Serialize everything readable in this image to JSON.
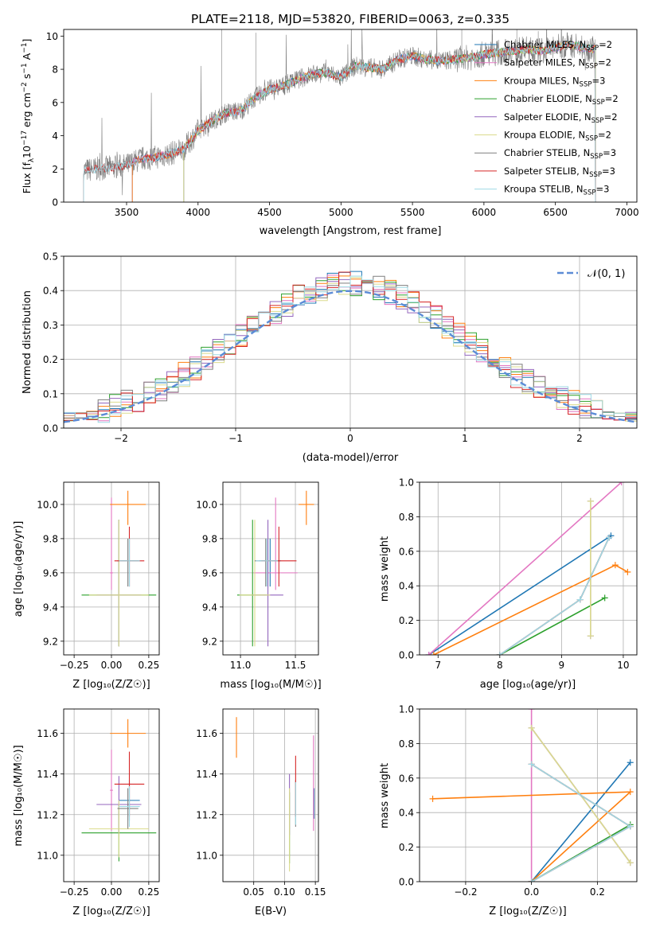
{
  "colors": {
    "Chabrier MILES": "#1f77b4",
    "Salpeter MILES": "#e377c2",
    "Kroupa MILES": "#ff7f0e",
    "Chabrier ELODIE": "#2ca02c",
    "Salpeter ELODIE": "#9467bd",
    "Kroupa ELODIE": "#dbdb8d",
    "Chabrier STELIB": "#7f7f7f",
    "Salpeter STELIB": "#d62728",
    "Kroupa STELIB": "#9edae5",
    "gauss": "#5b8bd6"
  },
  "chart_data": [
    {
      "id": "spectrum",
      "type": "line",
      "title": "PLATE=2118, MJD=53820, FIBERID=0063, z=0.335",
      "xlabel": "wavelength [Angstrom, rest frame]",
      "ylabel": "Flux [f_λ 10⁻¹⁷ erg cm⁻² s⁻¹ A⁻¹]",
      "xlim": [
        3060,
        7070
      ],
      "ylim": [
        0,
        10.4
      ],
      "xticks": [
        "3500",
        "4000",
        "4500",
        "5000",
        "5500",
        "6000",
        "6500",
        "7000"
      ],
      "yticks": [
        "0",
        "2",
        "4",
        "6",
        "8",
        "10"
      ],
      "legend_position": "top-right",
      "legend": [
        {
          "name": "Chabrier MILES",
          "label": "Chabrier MILES, N",
          "sub": "SSP",
          "tail": "=2"
        },
        {
          "name": "Salpeter MILES",
          "label": "Salpeter MILES, N",
          "sub": "SSP",
          "tail": "=2"
        },
        {
          "name": "Kroupa MILES",
          "label": "Kroupa MILES, N",
          "sub": "SSP",
          "tail": "=3"
        },
        {
          "name": "Chabrier ELODIE",
          "label": "Chabrier ELODIE, N",
          "sub": "SSP",
          "tail": "=2"
        },
        {
          "name": "Salpeter ELODIE",
          "label": "Salpeter ELODIE, N",
          "sub": "SSP",
          "tail": "=2"
        },
        {
          "name": "Kroupa ELODIE",
          "label": "Kroupa ELODIE, N",
          "sub": "SSP",
          "tail": "=2"
        },
        {
          "name": "Chabrier STELIB",
          "label": "Chabrier STELIB, N",
          "sub": "SSP",
          "tail": "=3"
        },
        {
          "name": "Salpeter STELIB",
          "label": "Salpeter STELIB, N",
          "sub": "SSP",
          "tail": "=3"
        },
        {
          "name": "Kroupa STELIB",
          "label": "Kroupa STELIB, N",
          "sub": "SSP",
          "tail": "=3"
        }
      ],
      "model_start_wavelength": {
        "Chabrier MILES": 3540,
        "Salpeter MILES": 3540,
        "Kroupa MILES": 3540,
        "Chabrier ELODIE": 3900,
        "Salpeter ELODIE": 3900,
        "Kroupa ELODIE": 3900,
        "Chabrier STELIB": 3200,
        "Salpeter STELIB": 3200,
        "Kroupa STELIB": 3200
      },
      "data_trend": {
        "x": [
          3200,
          3300,
          3400,
          3500,
          3600,
          3700,
          3800,
          3900,
          4000,
          4100,
          4200,
          4300,
          4400,
          4500,
          4600,
          4700,
          4800,
          4900,
          5000,
          5100,
          5200,
          5300,
          5400,
          5500,
          5600,
          5700,
          5800,
          5900,
          6000,
          6100,
          6200,
          6300,
          6400,
          6500,
          6600,
          6700,
          6780
        ],
        "y": [
          1.9,
          2.0,
          2.1,
          2.2,
          2.6,
          2.7,
          2.9,
          3.2,
          4.3,
          4.9,
          5.4,
          5.5,
          6.3,
          6.8,
          7.0,
          7.4,
          7.7,
          7.8,
          7.5,
          8.2,
          8.1,
          8.0,
          8.6,
          8.8,
          8.6,
          8.5,
          8.6,
          8.7,
          8.9,
          9.0,
          9.1,
          9.2,
          9.1,
          9.3,
          9.5,
          9.3,
          9.2
        ]
      }
    },
    {
      "id": "residuals",
      "type": "bar",
      "xlabel": "(data-model)/error",
      "ylabel": "Normed distribution",
      "xlim": [
        -2.5,
        2.5
      ],
      "ylim": [
        0,
        0.5
      ],
      "xticks": [
        "−2",
        "−1",
        "0",
        "1",
        "2"
      ],
      "yticks": [
        "0.0",
        "0.1",
        "0.2",
        "0.3",
        "0.4",
        "0.5"
      ],
      "legend": [
        {
          "name": "gauss",
          "label": "𝒩(0, 1)"
        }
      ],
      "legend_position": "top-right",
      "bin_width": 0.1
    },
    {
      "id": "age-vs-Z",
      "type": "scatter",
      "xlabel": "Z [log₁₀(Z/Z☉)]",
      "ylabel": "age  [log₁₀(age/yr)]",
      "xlim": [
        -0.32,
        0.32
      ],
      "ylim": [
        9.12,
        10.13
      ],
      "xticks": [
        "−0.25",
        "0.00",
        "0.25"
      ],
      "yticks": [
        "9.2",
        "9.4",
        "9.6",
        "9.8",
        "10.0"
      ]
    },
    {
      "id": "age-vs-mass",
      "type": "scatter",
      "xlabel": "mass [log₁₀(M/M☉)]",
      "xlim": [
        10.84,
        11.71
      ],
      "ylim": [
        9.12,
        10.13
      ],
      "xticks": [
        "11.0",
        "11.5"
      ],
      "yticks": [
        "9.2",
        "9.4",
        "9.6",
        "9.8",
        "10.0"
      ]
    },
    {
      "id": "weight-vs-age",
      "type": "line",
      "xlabel": "age  [log₁₀(age/yr)]",
      "ylabel": "mass weight",
      "xlim": [
        6.7,
        10.22
      ],
      "ylim": [
        0,
        1.0
      ],
      "xticks": [
        "7",
        "8",
        "9",
        "10"
      ],
      "yticks": [
        "0.0",
        "0.2",
        "0.4",
        "0.6",
        "0.8",
        "1.0"
      ]
    },
    {
      "id": "mass-vs-Z",
      "type": "scatter",
      "xlabel": "Z [log₁₀(Z/Z☉)]",
      "ylabel": "mass [log₁₀(M/M☉)]",
      "xlim": [
        -0.32,
        0.32
      ],
      "ylim": [
        10.87,
        11.72
      ],
      "xticks": [
        "−0.25",
        "0.00",
        "0.25"
      ],
      "yticks": [
        "11.0",
        "11.2",
        "11.4",
        "11.6"
      ]
    },
    {
      "id": "mass-vs-ebv",
      "type": "scatter",
      "xlabel": "E(B-V)",
      "xlim": [
        0.0,
        0.155
      ],
      "ylim": [
        10.87,
        11.72
      ],
      "xticks": [
        "0.05",
        "0.10",
        "0.15"
      ],
      "yticks": [
        "11.0",
        "11.2",
        "11.4",
        "11.6"
      ]
    },
    {
      "id": "weight-vs-Z",
      "type": "line",
      "xlabel": "Z [log₁₀(Z/Z☉)]",
      "ylabel": "mass weight",
      "xlim": [
        -0.34,
        0.32
      ],
      "ylim": [
        0,
        1.0
      ],
      "xticks": [
        "−0.2",
        "0.0",
        "0.2"
      ],
      "yticks": [
        "0.0",
        "0.2",
        "0.4",
        "0.6",
        "0.8",
        "1.0"
      ]
    }
  ],
  "fits": [
    {
      "name": "Chabrier MILES",
      "Z": 0.12,
      "dZ": 0.07,
      "age": 9.67,
      "dage_lo": 0.15,
      "dage_hi": 0.13,
      "mass": 11.27,
      "dmass": 0.1,
      "ebv": 0.148,
      "debv_lo": 0.09,
      "debv_hi": 0.06,
      "ssp_age": [
        6.85,
        9.8
      ],
      "ssp_Z": [
        0.0,
        0.3
      ],
      "ssp_w": [
        0.0,
        0.69
      ]
    },
    {
      "name": "Salpeter MILES",
      "Z": 0.0,
      "dZ": 0.01,
      "age": 9.6,
      "dage_lo": 0.1,
      "dage_hi": 0.44,
      "mass": 11.32,
      "dmass": 0.2,
      "ebv": 0.147,
      "debv_lo": 0.2,
      "debv_hi": 0.27,
      "ssp_age": [
        6.85,
        9.97
      ],
      "ssp_Z": [
        0.0,
        0.0
      ],
      "ssp_w": [
        0.0,
        1.0
      ]
    },
    {
      "name": "Kroupa MILES",
      "Z": 0.11,
      "dZ": 0.12,
      "age": 10.0,
      "dage_lo": 0.12,
      "dage_hi": 0.08,
      "mass": 11.6,
      "dmass": 0.07,
      "ebv": 0.022,
      "debv_lo": 0.12,
      "debv_hi": 0.08,
      "ssp_age": [
        6.93,
        9.87,
        10.07
      ],
      "ssp_Z": [
        0.0,
        0.3,
        -0.3
      ],
      "ssp_w": [
        0.0,
        0.52,
        0.48
      ]
    },
    {
      "name": "Chabrier ELODIE",
      "Z": 0.05,
      "dZ": 0.25,
      "age": 9.47,
      "dage_lo": 0.3,
      "dage_hi": 0.44,
      "mass": 11.11,
      "dmass": 0.14,
      "ebv": 0.108,
      "debv_lo": 0.15,
      "debv_hi": 0.2,
      "ssp_age": [
        8.0,
        9.7
      ],
      "ssp_Z": [
        0.0,
        0.3
      ],
      "ssp_w": [
        0.0,
        0.33
      ]
    },
    {
      "name": "Salpeter ELODIE",
      "Z": 0.05,
      "dZ": 0.15,
      "age": 9.47,
      "dage_lo": 0.3,
      "dage_hi": 0.44,
      "mass": 11.25,
      "dmass": 0.14,
      "ebv": 0.108,
      "debv_lo": 0.15,
      "debv_hi": 0.15,
      "ssp_age": [
        9.47,
        9.47
      ],
      "ssp_Z": [
        0.0,
        0.3
      ],
      "ssp_w": [
        0.89,
        0.11
      ]
    },
    {
      "name": "Kroupa ELODIE",
      "Z": 0.05,
      "dZ": 0.2,
      "age": 9.47,
      "dage_lo": 0.3,
      "dage_hi": 0.44,
      "mass": 11.13,
      "dmass": 0.14,
      "ebv": 0.108,
      "debv_lo": 0.21,
      "debv_hi": 0.2,
      "ssp_age": [
        9.47,
        9.47
      ],
      "ssp_Z": [
        0.0,
        0.3
      ],
      "ssp_w": [
        0.89,
        0.11
      ]
    },
    {
      "name": "Chabrier STELIB",
      "Z": 0.11,
      "dZ": 0.07,
      "age": 9.67,
      "dage_lo": 0.15,
      "dage_hi": 0.13,
      "mass": 11.23,
      "dmass": 0.1,
      "ebv": 0.118,
      "debv_lo": 0.09,
      "debv_hi": 0.14,
      "ssp_age": [
        8.0,
        9.3,
        9.77
      ],
      "ssp_Z": [
        0.0,
        0.3,
        0.0
      ],
      "ssp_w": [
        0.0,
        0.32,
        0.68
      ]
    },
    {
      "name": "Salpeter STELIB",
      "Z": 0.12,
      "dZ": 0.1,
      "age": 9.67,
      "dage_lo": 0.15,
      "dage_hi": 0.2,
      "mass": 11.35,
      "dmass": 0.16,
      "ebv": 0.118,
      "debv_lo": 0.16,
      "debv_hi": 0.14,
      "ssp_age": [
        8.0,
        9.3,
        9.77
      ],
      "ssp_Z": [
        0.0,
        0.3,
        0.0
      ],
      "ssp_w": [
        0.0,
        0.32,
        0.68
      ]
    },
    {
      "name": "Kroupa STELIB",
      "Z": 0.12,
      "dZ": 0.07,
      "age": 9.67,
      "dage_lo": 0.15,
      "dage_hi": 0.13,
      "mass": 11.24,
      "dmass": 0.1,
      "ebv": 0.118,
      "debv_lo": 0.09,
      "debv_hi": 0.12,
      "ssp_age": [
        8.0,
        9.3,
        9.77
      ],
      "ssp_Z": [
        0.0,
        0.3,
        0.0
      ],
      "ssp_w": [
        0.0,
        0.32,
        0.68
      ]
    }
  ]
}
